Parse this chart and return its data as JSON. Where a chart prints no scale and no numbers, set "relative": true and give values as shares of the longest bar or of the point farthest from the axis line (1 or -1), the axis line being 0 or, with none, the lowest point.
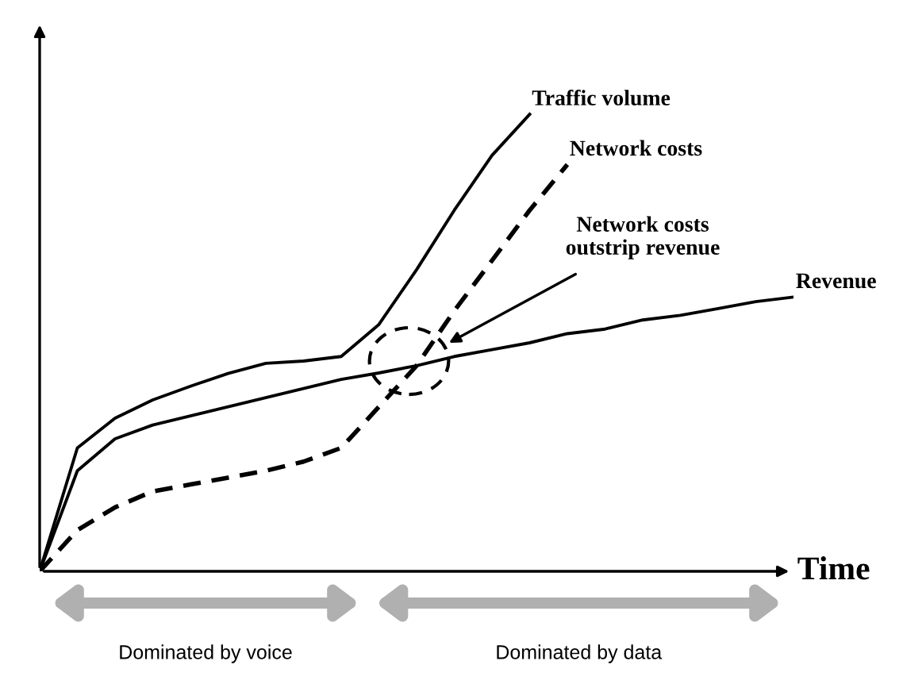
{
  "chart_data": {
    "type": "line",
    "relative": true,
    "xlabel": "Time",
    "marker": "none",
    "categories": [
      null,
      null,
      null,
      null,
      null,
      null,
      null,
      null,
      null,
      null,
      null,
      null,
      null,
      null,
      null,
      null,
      null,
      null,
      null,
      null,
      null
    ],
    "series": [
      {
        "name": "Traffic volume",
        "color": "#000000",
        "line_style": "solid",
        "values": [
          0,
          0.27,
          0.335,
          0.375,
          0.405,
          0.433,
          0.455,
          0.46,
          0.47,
          0.54,
          0.66,
          0.79,
          0.91,
          1.0,
          null,
          null,
          null,
          null,
          null,
          null,
          null
        ]
      },
      {
        "name": "Network costs",
        "color": "#000000",
        "line_style": "dashed",
        "values": [
          0,
          0.09,
          0.14,
          0.175,
          0.19,
          0.205,
          0.22,
          0.24,
          0.27,
          0.36,
          0.45,
          0.57,
          0.68,
          0.79,
          0.89,
          null,
          null,
          null,
          null,
          null,
          null
        ]
      },
      {
        "name": "Revenue",
        "color": "#000000",
        "line_style": "solid",
        "values": [
          0,
          0.22,
          0.29,
          0.32,
          0.34,
          0.36,
          0.38,
          0.4,
          0.42,
          0.434,
          0.45,
          0.47,
          0.485,
          0.5,
          0.52,
          0.53,
          0.55,
          0.56,
          0.575,
          0.59,
          0.6
        ]
      }
    ],
    "annotations": [
      "Network costs\noutstrip revenue",
      "Dominated by voice",
      "Dominated by data"
    ]
  }
}
